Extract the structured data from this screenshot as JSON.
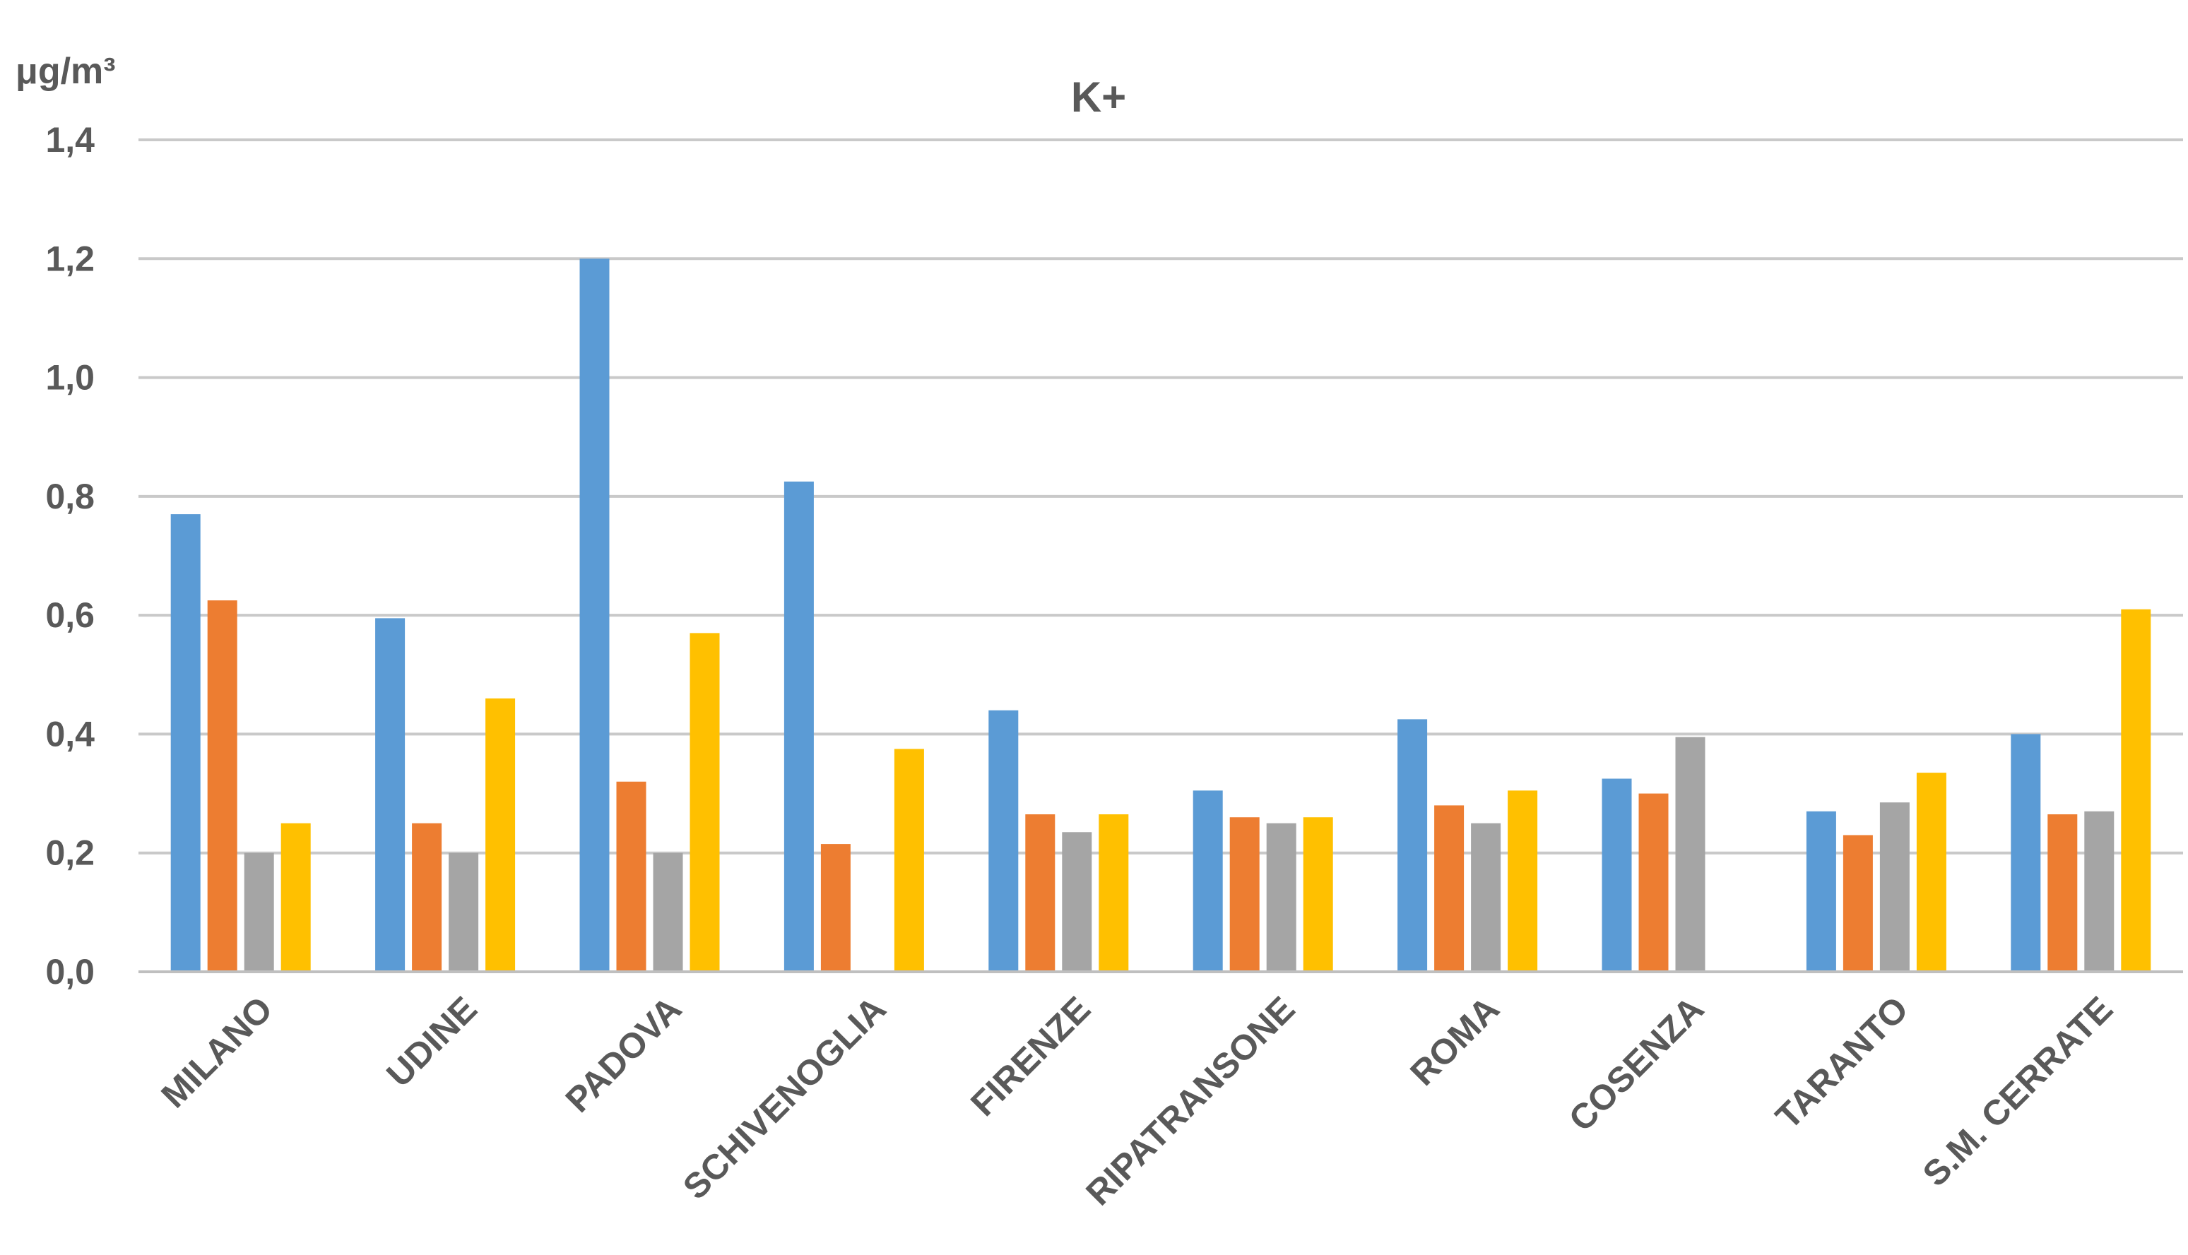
{
  "chart_data": {
    "type": "bar",
    "title": "K+",
    "ylabel": "μg/m³",
    "xlabel": "",
    "ylim": [
      0,
      1.4
    ],
    "yticks": [
      0.0,
      0.2,
      0.4,
      0.6,
      0.8,
      1.0,
      1.2,
      1.4
    ],
    "ytick_labels": [
      "0,0",
      "0,2",
      "0,4",
      "0,6",
      "0,8",
      "1,0",
      "1,2",
      "1,4"
    ],
    "grid": true,
    "legend": "none",
    "categories": [
      "MILANO",
      "UDINE",
      "PADOVA",
      "SCHIVENOGLIA",
      "FIRENZE",
      "RIPATRANSONE",
      "ROMA",
      "COSENZA",
      "TARANTO",
      "S.M. CERRATE"
    ],
    "series": [
      {
        "color": "#5B9BD5",
        "values": [
          0.77,
          0.595,
          1.2,
          0.825,
          0.44,
          0.305,
          0.425,
          0.325,
          0.27,
          0.4
        ]
      },
      {
        "color": "#ED7D31",
        "values": [
          0.625,
          0.25,
          0.32,
          0.215,
          0.265,
          0.26,
          0.28,
          0.3,
          0.23,
          0.265
        ]
      },
      {
        "color": "#A5A5A5",
        "values": [
          0.2,
          0.2,
          0.2,
          null,
          0.235,
          0.25,
          0.25,
          0.395,
          0.285,
          0.27
        ]
      },
      {
        "color": "#FFC000",
        "values": [
          0.25,
          0.46,
          0.57,
          0.375,
          0.265,
          0.26,
          0.305,
          null,
          0.335,
          0.61
        ]
      }
    ]
  }
}
